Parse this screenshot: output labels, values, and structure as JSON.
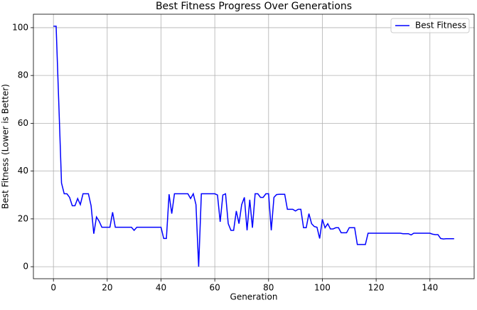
{
  "chart_data": {
    "type": "line",
    "title": "Best Fitness Progress Over Generations",
    "x_label": "Generation",
    "y_label": "Best Fitness (Lower is Better)",
    "x": [
      0,
      1,
      2,
      3,
      4,
      5,
      6,
      7,
      8,
      9,
      10,
      11,
      12,
      13,
      14,
      15,
      16,
      17,
      18,
      19,
      20,
      21,
      22,
      23,
      24,
      25,
      26,
      27,
      28,
      29,
      30,
      31,
      32,
      33,
      34,
      35,
      36,
      37,
      38,
      39,
      40,
      41,
      42,
      43,
      44,
      45,
      46,
      47,
      48,
      49,
      50,
      51,
      52,
      53,
      54,
      55,
      56,
      57,
      58,
      59,
      60,
      61,
      62,
      63,
      64,
      65,
      66,
      67,
      68,
      69,
      70,
      71,
      72,
      73,
      74,
      75,
      76,
      77,
      78,
      79,
      80,
      81,
      82,
      83,
      84,
      85,
      86,
      87,
      88,
      89,
      90,
      91,
      92,
      93,
      94,
      95,
      96,
      97,
      98,
      99,
      100,
      101,
      102,
      103,
      104,
      105,
      106,
      107,
      108,
      109,
      110,
      111,
      112,
      113,
      114,
      115,
      116,
      117,
      118,
      119,
      120,
      121,
      122,
      123,
      124,
      125,
      126,
      127,
      128,
      129,
      130,
      131,
      132,
      133,
      134,
      135,
      136,
      137,
      138,
      139,
      140,
      141,
      142,
      143,
      144,
      145,
      146,
      147,
      148,
      149
    ],
    "series": [
      {
        "name": "Best Fitness",
        "color": "#0000ff",
        "values": [
          100.6,
          100.6,
          68,
          35,
          30.5,
          30.5,
          29,
          25.5,
          25.5,
          28.5,
          26,
          30.5,
          30.5,
          30.5,
          25.5,
          13.8,
          20.8,
          19,
          16.5,
          16.5,
          16.5,
          16.5,
          22.8,
          16.5,
          16.5,
          16.5,
          16.5,
          16.5,
          16.5,
          16.5,
          15.2,
          16.5,
          16.5,
          16.5,
          16.5,
          16.5,
          16.5,
          16.5,
          16.5,
          16.5,
          16.5,
          11.8,
          11.8,
          30.3,
          22.2,
          30.5,
          30.5,
          30.5,
          30.5,
          30.5,
          30.5,
          28.5,
          30.5,
          26,
          0,
          30.5,
          30.5,
          30.5,
          30.5,
          30.5,
          30.5,
          30,
          18.8,
          30,
          30.5,
          18,
          15.2,
          15.2,
          23.3,
          18,
          26,
          29,
          15.2,
          28,
          16.3,
          30.5,
          30.5,
          29,
          29,
          30.5,
          30.5,
          15.2,
          29,
          30.2,
          30.3,
          30.3,
          30.3,
          24,
          24,
          24,
          23.3,
          24,
          24,
          16.3,
          16.3,
          22.2,
          18,
          16.8,
          16.5,
          11.8,
          19.8,
          16.3,
          18,
          15.8,
          15.8,
          16.3,
          16.3,
          14.2,
          14.2,
          14.2,
          16.3,
          16.3,
          16.3,
          9.3,
          9.3,
          9.3,
          9.3,
          14,
          14,
          14,
          14,
          14,
          14,
          14,
          14,
          14,
          14,
          14,
          14,
          14,
          13.8,
          13.8,
          13.8,
          13.3,
          14,
          14,
          14,
          14,
          14,
          14,
          14,
          13.6,
          13.4,
          13.4,
          11.8,
          11.6,
          11.7,
          11.7,
          11.7,
          11.7
        ]
      }
    ],
    "xlim": [
      -7.45,
      156.45
    ],
    "ylim": [
      -5.03,
      105.63
    ],
    "xticks": [
      0,
      20,
      40,
      60,
      80,
      100,
      120,
      140
    ],
    "yticks": [
      0,
      20,
      40,
      60,
      80,
      100
    ],
    "grid": true,
    "legend": "upper right"
  }
}
